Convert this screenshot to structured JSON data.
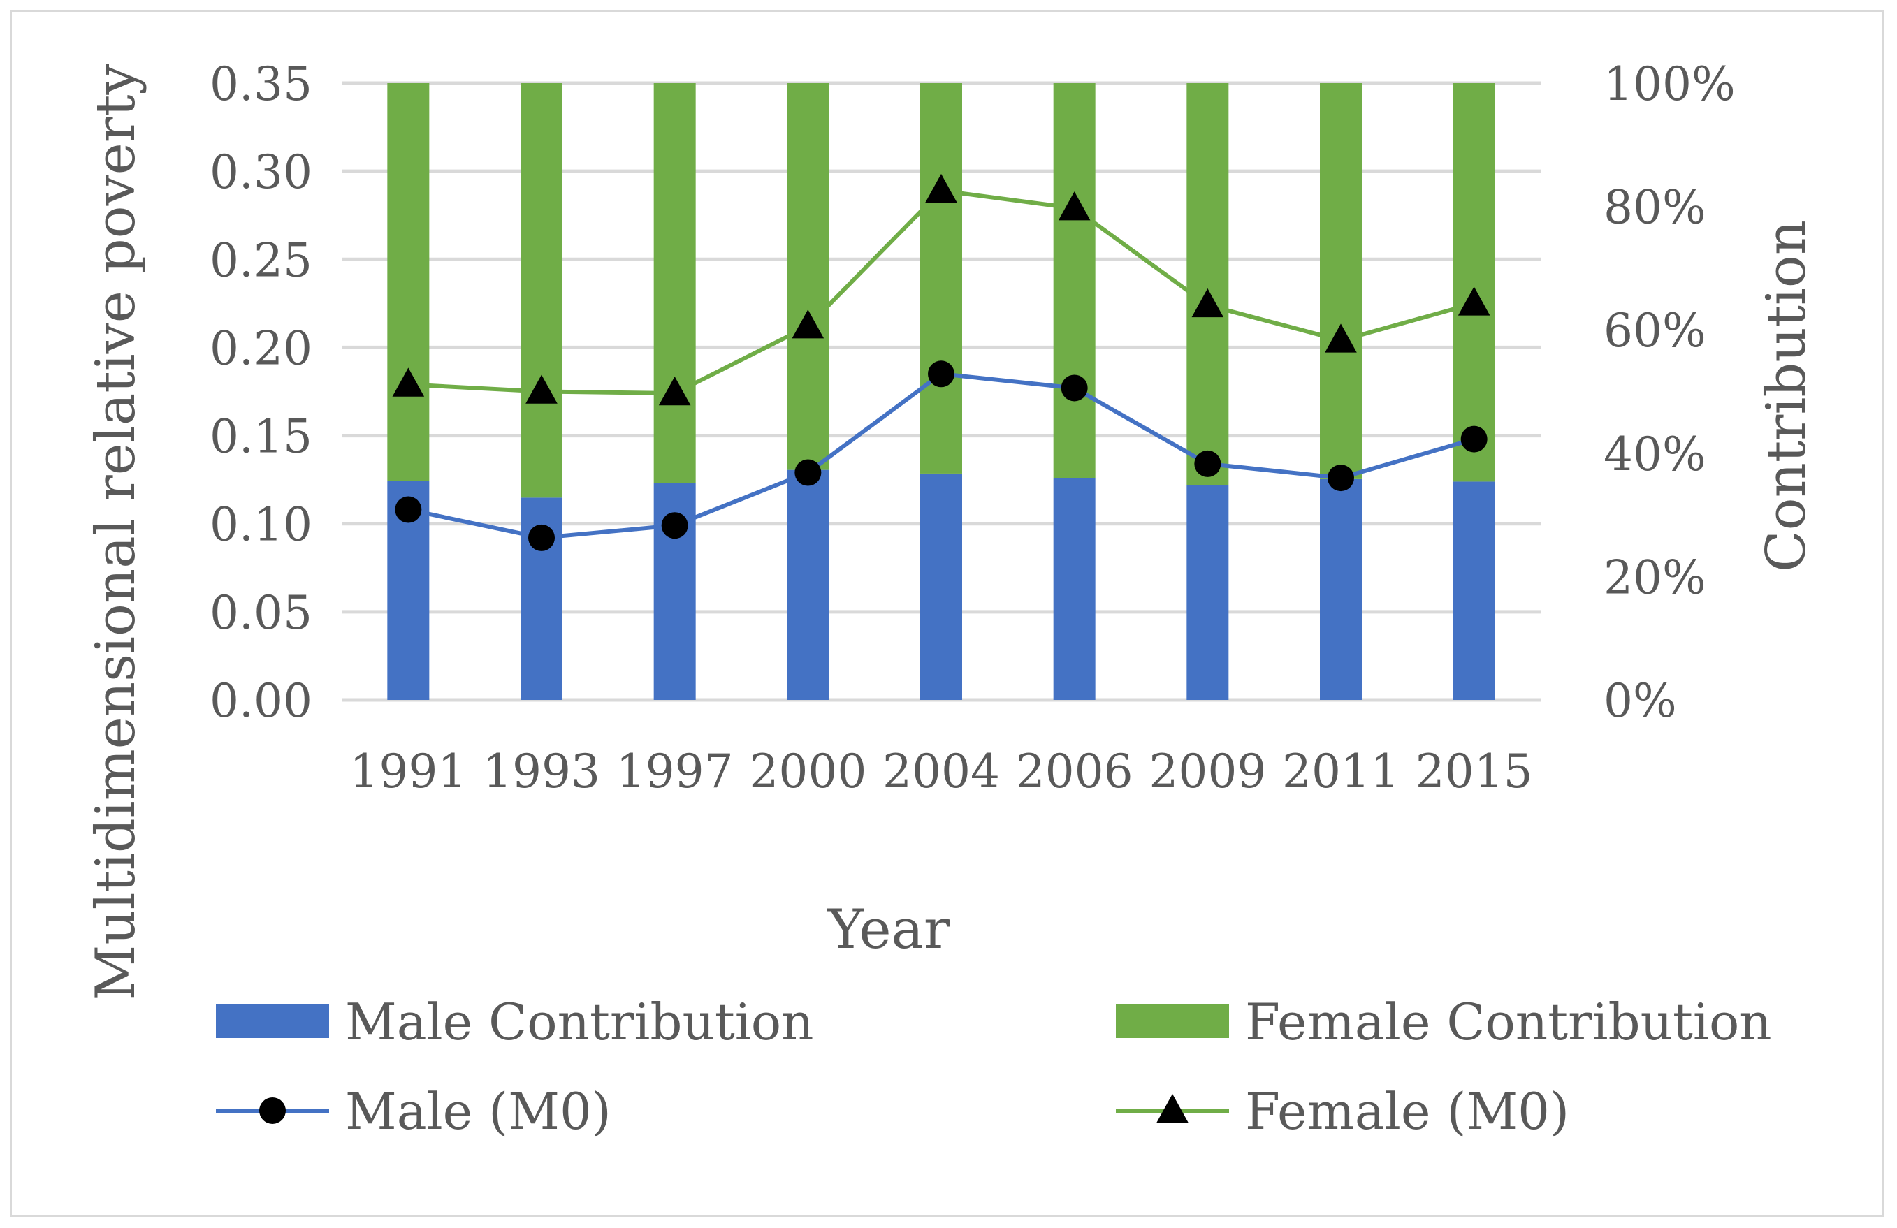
{
  "chart_data": {
    "type": "bar+line",
    "title": "",
    "xlabel": "Year",
    "ylabel": "Multidimensional relative poverty",
    "y2label": "Contribution",
    "categories": [
      "1991",
      "1993",
      "1997",
      "2000",
      "2004",
      "2006",
      "2009",
      "2011",
      "2015"
    ],
    "ylim": [
      0,
      0.35
    ],
    "yticks": [
      "0.00",
      "0.05",
      "0.10",
      "0.15",
      "0.20",
      "0.25",
      "0.30",
      "0.35"
    ],
    "y2lim": [
      0,
      100
    ],
    "y2ticks": [
      "0%",
      "20%",
      "40%",
      "60%",
      "80%",
      "100%"
    ],
    "grid": true,
    "legend_position": "bottom",
    "bar_series": [
      {
        "name": "Male Contribution",
        "color": "#4472c4",
        "values": [
          35.5,
          32.8,
          35.2,
          37.3,
          36.7,
          35.9,
          34.8,
          35.8,
          35.4
        ]
      },
      {
        "name": "Female Contribution",
        "color": "#70ad47",
        "values": [
          64.5,
          67.2,
          64.8,
          62.7,
          63.3,
          64.1,
          65.2,
          64.2,
          64.6
        ]
      }
    ],
    "line_series": [
      {
        "name": "Male (M0)",
        "color": "#4472c4",
        "marker": "circle",
        "values": [
          0.108,
          0.092,
          0.099,
          0.129,
          0.185,
          0.177,
          0.134,
          0.126,
          0.148
        ]
      },
      {
        "name": "Female (M0)",
        "color": "#70ad47",
        "marker": "triangle",
        "values": [
          0.179,
          0.175,
          0.174,
          0.212,
          0.289,
          0.279,
          0.224,
          0.204,
          0.225
        ]
      }
    ]
  }
}
